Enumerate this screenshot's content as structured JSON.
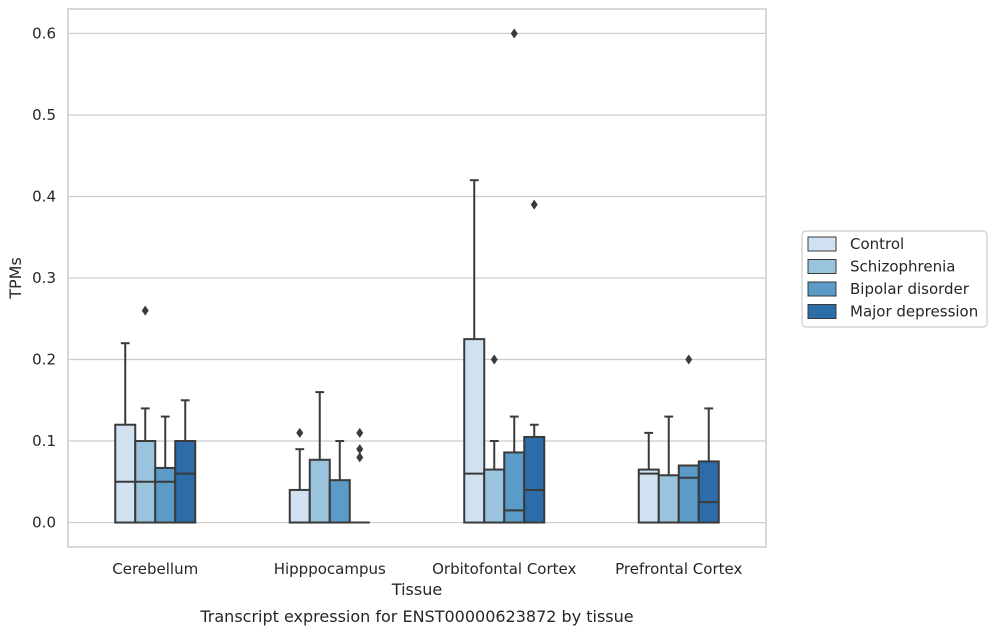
{
  "chart_data": {
    "type": "box",
    "title": "",
    "caption": "Transcript expression for ENST00000623872 by tissue",
    "xlabel": "Tissue",
    "ylabel": "TPMs",
    "ylim": [
      -0.03,
      0.63
    ],
    "yticks": [
      "0.0",
      "0.1",
      "0.2",
      "0.3",
      "0.4",
      "0.5",
      "0.6"
    ],
    "grid": "horizontal",
    "legend_position": "right",
    "categories": [
      "Cerebellum",
      "Hipppocampus",
      "Orbitofontal Cortex",
      "Prefrontal Cortex"
    ],
    "series": [
      {
        "name": "Control",
        "color": "#d0e1f2",
        "boxes": [
          {
            "whisker_low": 0.0,
            "q1": 0.0,
            "median": 0.05,
            "q3": 0.12,
            "whisker_high": 0.22,
            "outliers": []
          },
          {
            "whisker_low": 0.0,
            "q1": 0.0,
            "median": 0.0,
            "q3": 0.04,
            "whisker_high": 0.09,
            "outliers": [
              0.11
            ]
          },
          {
            "whisker_low": 0.0,
            "q1": 0.0,
            "median": 0.06,
            "q3": 0.225,
            "whisker_high": 0.42,
            "outliers": []
          },
          {
            "whisker_low": 0.0,
            "q1": 0.0,
            "median": 0.06,
            "q3": 0.065,
            "whisker_high": 0.11,
            "outliers": []
          }
        ]
      },
      {
        "name": "Schizophrenia",
        "color": "#9ac4de",
        "boxes": [
          {
            "whisker_low": 0.0,
            "q1": 0.0,
            "median": 0.05,
            "q3": 0.1,
            "whisker_high": 0.14,
            "outliers": [
              0.26
            ]
          },
          {
            "whisker_low": 0.0,
            "q1": 0.0,
            "median": 0.0,
            "q3": 0.077,
            "whisker_high": 0.16,
            "outliers": []
          },
          {
            "whisker_low": 0.0,
            "q1": 0.0,
            "median": 0.0,
            "q3": 0.065,
            "whisker_high": 0.1,
            "outliers": [
              0.2
            ]
          },
          {
            "whisker_low": 0.0,
            "q1": 0.0,
            "median": 0.0,
            "q3": 0.058,
            "whisker_high": 0.13,
            "outliers": []
          }
        ]
      },
      {
        "name": "Bipolar disorder",
        "color": "#5a9bc7",
        "boxes": [
          {
            "whisker_low": 0.0,
            "q1": 0.0,
            "median": 0.05,
            "q3": 0.067,
            "whisker_high": 0.13,
            "outliers": []
          },
          {
            "whisker_low": 0.0,
            "q1": 0.0,
            "median": 0.0,
            "q3": 0.052,
            "whisker_high": 0.1,
            "outliers": []
          },
          {
            "whisker_low": 0.0,
            "q1": 0.0,
            "median": 0.015,
            "q3": 0.086,
            "whisker_high": 0.13,
            "outliers": [
              0.6
            ]
          },
          {
            "whisker_low": 0.0,
            "q1": 0.0,
            "median": 0.055,
            "q3": 0.07,
            "whisker_high": 0.07,
            "outliers": [
              0.2
            ]
          }
        ]
      },
      {
        "name": "Major depression",
        "color": "#2b6ca9",
        "boxes": [
          {
            "whisker_low": 0.0,
            "q1": 0.0,
            "median": 0.06,
            "q3": 0.1,
            "whisker_high": 0.15,
            "outliers": []
          },
          {
            "whisker_low": 0.0,
            "q1": 0.0,
            "median": 0.0,
            "q3": 0.0,
            "whisker_high": 0.0,
            "outliers": [
              0.11,
              0.09,
              0.08
            ]
          },
          {
            "whisker_low": 0.0,
            "q1": 0.0,
            "median": 0.04,
            "q3": 0.105,
            "whisker_high": 0.12,
            "outliers": [
              0.39
            ]
          },
          {
            "whisker_low": 0.0,
            "q1": 0.0,
            "median": 0.025,
            "q3": 0.075,
            "whisker_high": 0.14,
            "outliers": []
          }
        ]
      }
    ]
  }
}
